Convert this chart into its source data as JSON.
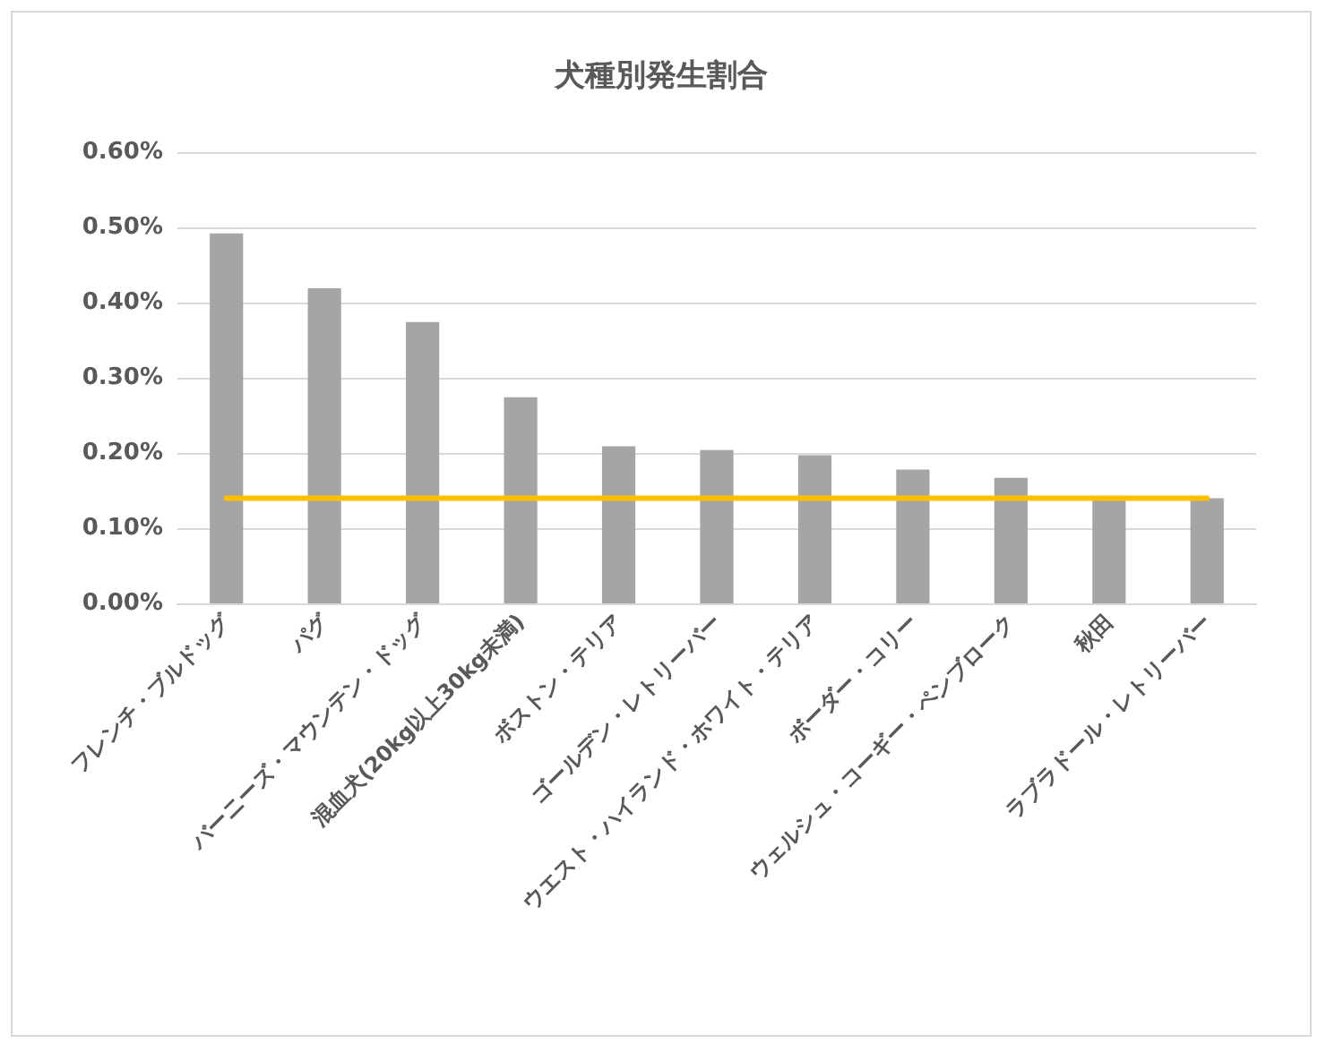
{
  "chart_data": {
    "type": "bar",
    "title": "犬種別発生割合",
    "categories": [
      "フレンチ・ブルドッグ",
      "パグ",
      "バーニーズ・マウンテン・ドッグ",
      "混血犬(20kg以上30kg未満)",
      "ボストン・テリア",
      "ゴールデン・レトリーバー",
      "ウエスト・ハイランド・ホワイト・テリア",
      "ボーダー・コリー",
      "ウェルシュ・コーギー・ペンブローク",
      "秋田",
      "ラブラドール・レトリーバー"
    ],
    "series": [
      {
        "color": "#a5a5a5",
        "values": [
          0.492,
          0.419,
          0.374,
          0.274,
          0.209,
          0.204,
          0.197,
          0.178,
          0.167,
          0.14,
          0.14
        ]
      },
      {
        "type": "line",
        "color": "#ffc000",
        "values": [
          0.14,
          0.14,
          0.14,
          0.14,
          0.14,
          0.14,
          0.14,
          0.14,
          0.14,
          0.14,
          0.14
        ]
      }
    ],
    "ylim": [
      0,
      0.6
    ],
    "yticks": [
      {
        "value": 0,
        "label": "0.00%"
      },
      {
        "value": 0.1,
        "label": "0.10%"
      },
      {
        "value": 0.2,
        "label": "0.20%"
      },
      {
        "value": 0.3,
        "label": "0.30%"
      },
      {
        "value": 0.4,
        "label": "0.40%"
      },
      {
        "value": 0.5,
        "label": "0.50%"
      },
      {
        "value": 0.6,
        "label": "0.60%"
      }
    ],
    "grid": "y",
    "marker": "none",
    "line_style": "solid"
  }
}
